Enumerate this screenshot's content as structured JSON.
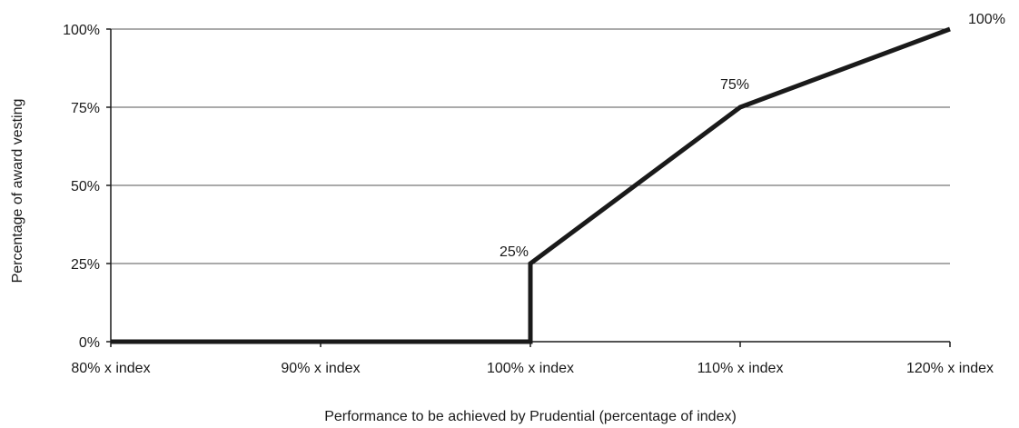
{
  "chart_data": {
    "type": "line",
    "title": "",
    "xlabel": "Performance to be achieved by Prudential (percentage of index)",
    "ylabel": "Percentage of award vesting",
    "x_tick_labels": [
      "80% x index",
      "90% x index",
      "100% x index",
      "110% x index",
      "120% x index"
    ],
    "y_tick_labels": [
      "0%",
      "25%",
      "50%",
      "75%",
      "100%"
    ],
    "xlim": [
      80,
      120
    ],
    "ylim": [
      0,
      100
    ],
    "grid": "horizontal",
    "series": [
      {
        "points": [
          {
            "x": 80,
            "y": 0
          },
          {
            "x": 100,
            "y": 0
          },
          {
            "x": 100,
            "y": 25
          },
          {
            "x": 110,
            "y": 75
          },
          {
            "x": 120,
            "y": 100
          }
        ],
        "color": "#1a1a1a"
      }
    ],
    "data_labels": [
      {
        "x": 100,
        "y": 25,
        "text": "25%"
      },
      {
        "x": 110,
        "y": 75,
        "text": "75%"
      },
      {
        "x": 120,
        "y": 100,
        "text": "100%"
      }
    ]
  }
}
